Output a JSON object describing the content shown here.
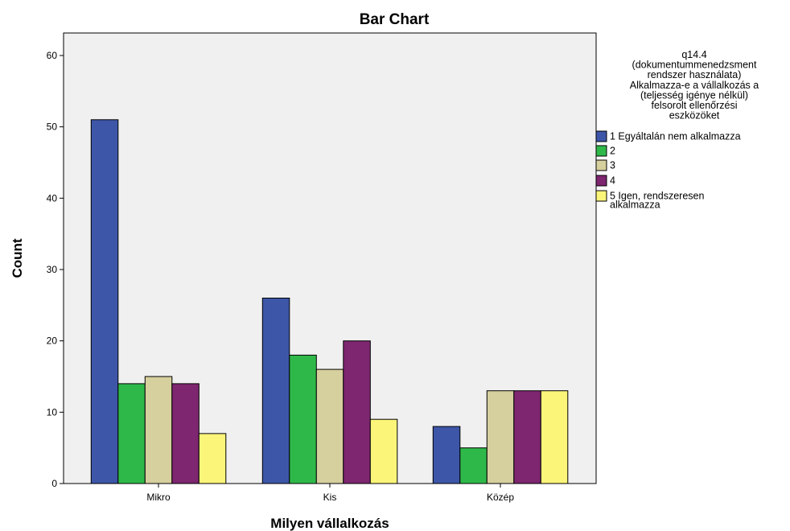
{
  "chart_data": {
    "type": "bar",
    "title": "Bar Chart",
    "xlabel": "Milyen vállalkozás",
    "ylabel": "Count",
    "categories": [
      "Mikro",
      "Kis",
      "Közép"
    ],
    "ylim": [
      0,
      65
    ],
    "yticks": [
      0,
      10,
      20,
      30,
      40,
      50,
      60
    ],
    "grid": false,
    "legend_position": "right",
    "legend_title": [
      "q14.4",
      "(dokumentummenedzsment",
      "rendszer használata)",
      "Alkalmazza-e a vállalkozás a",
      "(teljesség igénye nélkül)",
      "felsorolt ellenőrzési",
      "eszközöket"
    ],
    "series": [
      {
        "name": "1 Egyáltalán nem alkalmazza",
        "label_lines": [
          "1 Egyáltalán nem alkalmazza"
        ],
        "color": "#3d56a8",
        "values": [
          51,
          26,
          8
        ]
      },
      {
        "name": "2",
        "label_lines": [
          "2"
        ],
        "color": "#2fb84a",
        "values": [
          14,
          18,
          5
        ]
      },
      {
        "name": "3",
        "label_lines": [
          "3"
        ],
        "color": "#d6cf9e",
        "values": [
          15,
          16,
          13
        ]
      },
      {
        "name": "4",
        "label_lines": [
          "4"
        ],
        "color": "#7e2670",
        "values": [
          14,
          20,
          13
        ]
      },
      {
        "name": "5 Igen, rendszeresen alkalmazza",
        "label_lines": [
          "5 Igen, rendszeresen",
          "alkalmazza"
        ],
        "color": "#fbf57a",
        "values": [
          7,
          9,
          13
        ]
      }
    ],
    "plot_background": "#f0f0f0",
    "bar_outline": "#000000"
  }
}
